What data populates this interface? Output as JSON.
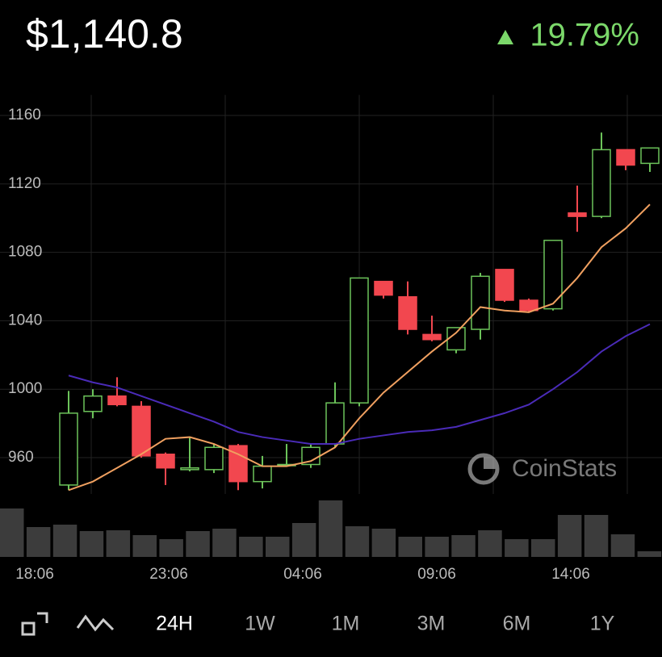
{
  "header": {
    "price": "$1,140.8",
    "change": "19.79%",
    "change_color": "#7bd86a"
  },
  "chart_data": {
    "type": "candlestick",
    "categories": [
      null,
      null,
      null,
      null,
      null,
      null,
      null,
      null,
      null,
      null,
      null,
      null,
      null,
      null,
      null,
      null,
      null,
      null,
      null,
      null,
      null,
      null,
      null,
      null,
      null
    ],
    "open": [
      944,
      987,
      996,
      990,
      962,
      953,
      953,
      967,
      946,
      956,
      956,
      968,
      992,
      1063,
      1054,
      1032,
      1023,
      1035,
      1070,
      1052,
      1047,
      1103,
      1101,
      1140,
      1132
    ],
    "close": [
      986,
      996,
      991,
      961,
      954,
      954,
      966,
      946,
      955,
      956,
      966,
      992,
      1065,
      1055,
      1035,
      1029,
      1036,
      1066,
      1052,
      1046,
      1087,
      1101,
      1140,
      1131,
      1141
    ],
    "high": [
      999,
      1000,
      1007,
      993,
      963,
      972,
      968,
      968,
      961,
      968,
      968,
      1004,
      1065,
      1063,
      1063,
      1043,
      1036,
      1068,
      1070,
      1053,
      1087,
      1119,
      1150,
      1140,
      1141
    ],
    "low": [
      941,
      983,
      990,
      960,
      944,
      952,
      951,
      941,
      942,
      955,
      954,
      966,
      990,
      1053,
      1032,
      1028,
      1021,
      1029,
      1051,
      1045,
      1046,
      1092,
      1100,
      1128,
      1127
    ],
    "up_color": "#6cc35a",
    "down_color": "#f2474f",
    "series": [
      {
        "color": "#f0a060",
        "values": [
          941,
          946,
          954,
          962,
          971,
          972,
          968,
          962,
          955,
          955,
          958,
          966,
          983,
          998,
          1010,
          1022,
          1033,
          1048,
          1046,
          1045,
          1050,
          1065,
          1083,
          1094,
          1108
        ]
      },
      {
        "color": "#4a2bb8",
        "values": [
          1008,
          1004,
          1001,
          996,
          991,
          986,
          981,
          975,
          972,
          970,
          968,
          968,
          971,
          973,
          975,
          976,
          978,
          982,
          986,
          991,
          1000,
          1010,
          1022,
          1031,
          1038
        ]
      }
    ],
    "volume": [
      60,
      37,
      40,
      32,
      33,
      27,
      22,
      32,
      35,
      25,
      25,
      42,
      70,
      38,
      35,
      25,
      25,
      27,
      33,
      22,
      22,
      52,
      52,
      28,
      7
    ],
    "volume_color": "#3c3c3c",
    "ylim": [
      940,
      1172
    ],
    "yticks": [
      960,
      1000,
      1040,
      1080,
      1120,
      1160
    ],
    "grid": true,
    "xtick_labels": [
      "18:06",
      "23:06",
      "04:06",
      "09:06",
      "14:06"
    ],
    "watermark": "CoinStats"
  },
  "timeframes": [
    "24H",
    "1W",
    "1M",
    "3M",
    "6M",
    "1Y"
  ],
  "active_timeframe": "24H"
}
